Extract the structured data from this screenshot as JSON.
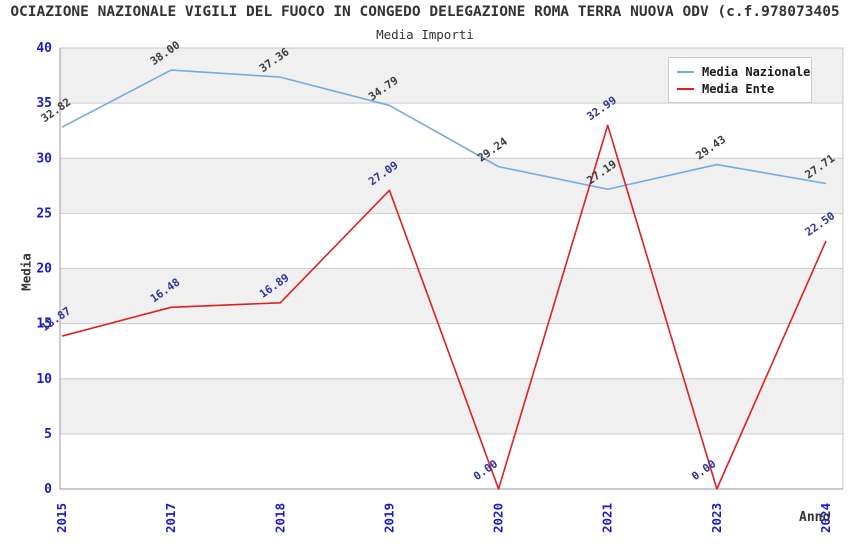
{
  "header": {
    "title": "OCIAZIONE NAZIONALE VIGILI DEL FUOCO IN CONGEDO DELEGAZIONE ROMA TERRA NUOVA ODV (c.f.978073405",
    "subtitle": "Media Importi"
  },
  "legend": {
    "items": [
      {
        "label": "Media Nazionale",
        "color": "#74aae4"
      },
      {
        "label": "Media Ente",
        "color": "#e02020"
      }
    ]
  },
  "axes": {
    "y_label": "Media",
    "x_label": "Anno",
    "y_ticks": [
      0,
      5,
      10,
      15,
      20,
      25,
      30,
      35,
      40
    ],
    "tick_color": "#1a1acc"
  },
  "chart_data": {
    "type": "line",
    "title": "Media Importi",
    "xlabel": "Anno",
    "ylabel": "Media",
    "ylim": [
      0,
      40
    ],
    "grid": true,
    "band_fill": "#f0f0f0",
    "gridline_color": "#cccccc",
    "legend_position": "top-right",
    "categories": [
      "2015",
      "2017",
      "2018",
      "2019",
      "2020",
      "2021",
      "2023",
      "2024"
    ],
    "series": [
      {
        "name": "Media Nazionale",
        "color": "#74aae4",
        "label_color": "#3d3d3d",
        "values": [
          32.82,
          38.0,
          37.36,
          34.79,
          29.24,
          27.19,
          29.43,
          27.71
        ]
      },
      {
        "name": "Media Ente",
        "color": "#e02020",
        "label_color": "#333399",
        "values": [
          13.87,
          16.48,
          16.89,
          27.09,
          0.0,
          32.99,
          0.0,
          22.5
        ]
      }
    ]
  }
}
